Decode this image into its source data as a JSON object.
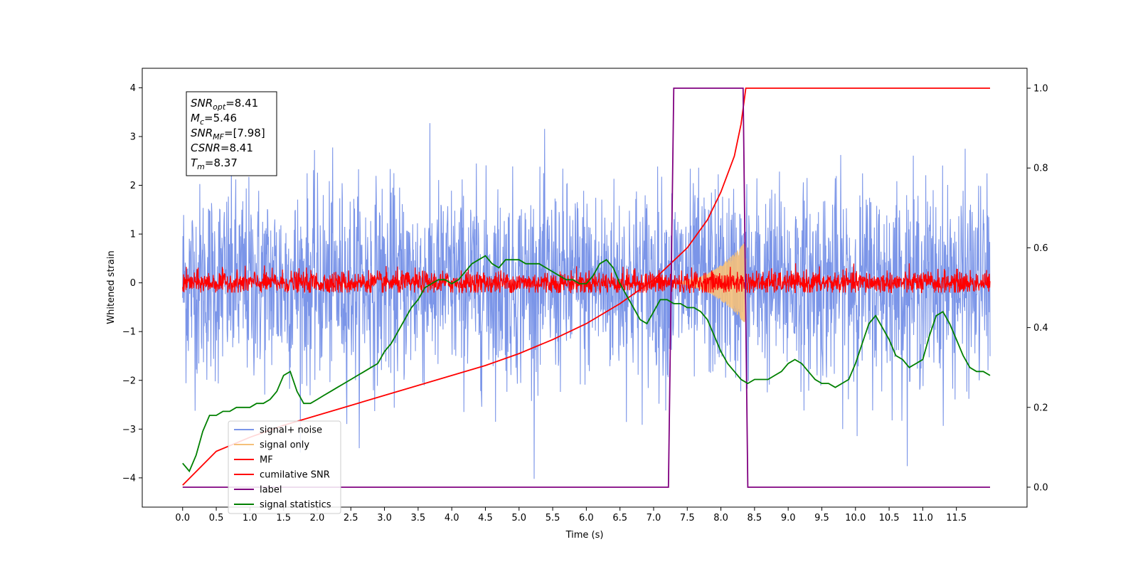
{
  "chart_data": {
    "type": "line",
    "xlabel": "Time (s)",
    "ylabel_left": "Whitened strain",
    "ylabel_right": "",
    "xlim": [
      -0.6,
      12.55
    ],
    "ylim_left": [
      -4.6,
      4.4
    ],
    "ylim_right": [
      -0.05,
      1.05
    ],
    "x_ticks": [
      "0.0",
      "0.5",
      "1.0",
      "1.5",
      "2.0",
      "2.5",
      "3.0",
      "3.5",
      "4.0",
      "4.5",
      "5.0",
      "5.5",
      "6.0",
      "6.5",
      "7.0",
      "7.5",
      "8.0",
      "8.5",
      "9.0",
      "9.5",
      "10.0",
      "10.5",
      "11.0",
      "11.5"
    ],
    "y_ticks_left": [
      "4",
      "3",
      "2",
      "1",
      "0",
      "−1",
      "−2",
      "−3",
      "−4"
    ],
    "y_ticks_right": [
      "1.0",
      "0.8",
      "0.6",
      "0.4",
      "0.2",
      "0.0"
    ],
    "grid": false,
    "legend_position": "lower-left",
    "info_box": [
      {
        "var": "SNR",
        "sub": "opt",
        "value": "=8.41"
      },
      {
        "var": "M",
        "sub": "c",
        "value": "=5.46"
      },
      {
        "var": "SNR",
        "sub": "MF",
        "value": "=[7.98]"
      },
      {
        "var": "CSNR",
        "sub": "",
        "value": "=8.41"
      },
      {
        "var": "T",
        "sub": "m",
        "value": "=8.37"
      }
    ],
    "series": [
      {
        "name": "signal+ noise",
        "color": "#7b95e8",
        "axis": "left",
        "description_kind": "noise",
        "amplitude_std": 1.0,
        "x_range": [
          0.0,
          12.0
        ]
      },
      {
        "name": "signal only",
        "color": "#f5c07a",
        "axis": "left",
        "chirp_start": 7.2,
        "chirp_end": 8.37,
        "peak_amplitude": 0.85
      },
      {
        "name": "MF",
        "color": "#ff0000",
        "axis": "left",
        "amplitude_std": 0.12,
        "x_range": [
          0.0,
          12.0
        ]
      },
      {
        "name": "cumilative SNR",
        "color": "#ff0000",
        "axis": "right",
        "x": [
          0.0,
          0.5,
          1.0,
          1.5,
          2.0,
          2.5,
          3.0,
          3.5,
          4.0,
          4.5,
          5.0,
          5.5,
          6.0,
          6.5,
          7.0,
          7.5,
          7.8,
          8.0,
          8.2,
          8.3,
          8.37,
          8.5,
          9.0,
          10.0,
          11.0,
          12.0
        ],
        "y": [
          0.005,
          0.09,
          0.125,
          0.155,
          0.18,
          0.205,
          0.23,
          0.255,
          0.28,
          0.305,
          0.335,
          0.37,
          0.41,
          0.46,
          0.52,
          0.6,
          0.67,
          0.74,
          0.83,
          0.91,
          1.0,
          1.0,
          1.0,
          1.0,
          1.0,
          1.0
        ]
      },
      {
        "name": "label",
        "color": "#800080",
        "axis": "right",
        "x": [
          0.0,
          7.22,
          7.3,
          8.33,
          8.4,
          12.0
        ],
        "y": [
          0.0,
          0.0,
          1.0,
          1.0,
          0.0,
          0.0
        ]
      },
      {
        "name": "signal statistics",
        "color": "#008000",
        "axis": "right",
        "x": [
          0.0,
          0.1,
          0.2,
          0.3,
          0.4,
          0.5,
          0.6,
          0.7,
          0.8,
          0.9,
          1.0,
          1.1,
          1.2,
          1.3,
          1.4,
          1.5,
          1.6,
          1.7,
          1.8,
          1.9,
          2.0,
          2.1,
          2.2,
          2.3,
          2.4,
          2.5,
          2.6,
          2.7,
          2.8,
          2.9,
          3.0,
          3.1,
          3.2,
          3.3,
          3.4,
          3.5,
          3.6,
          3.7,
          3.8,
          3.9,
          4.0,
          4.1,
          4.2,
          4.3,
          4.4,
          4.5,
          4.6,
          4.7,
          4.8,
          4.9,
          5.0,
          5.1,
          5.2,
          5.3,
          5.4,
          5.5,
          5.6,
          5.7,
          5.8,
          5.9,
          6.0,
          6.1,
          6.2,
          6.3,
          6.4,
          6.5,
          6.6,
          6.7,
          6.8,
          6.9,
          7.0,
          7.1,
          7.2,
          7.3,
          7.4,
          7.5,
          7.6,
          7.7,
          7.8,
          7.9,
          8.0,
          8.1,
          8.2,
          8.3,
          8.4,
          8.5,
          8.6,
          8.7,
          8.8,
          8.9,
          9.0,
          9.1,
          9.2,
          9.3,
          9.4,
          9.5,
          9.6,
          9.7,
          9.8,
          9.9,
          10.0,
          10.1,
          10.2,
          10.3,
          10.4,
          10.5,
          10.6,
          10.7,
          10.8,
          10.9,
          11.0,
          11.1,
          11.2,
          11.3,
          11.4,
          11.5,
          11.6,
          11.7,
          11.8,
          11.9,
          12.0
        ],
        "y": [
          0.06,
          0.04,
          0.08,
          0.14,
          0.18,
          0.18,
          0.19,
          0.19,
          0.2,
          0.2,
          0.2,
          0.21,
          0.21,
          0.22,
          0.24,
          0.28,
          0.29,
          0.24,
          0.21,
          0.21,
          0.22,
          0.23,
          0.24,
          0.25,
          0.26,
          0.27,
          0.28,
          0.29,
          0.3,
          0.31,
          0.34,
          0.36,
          0.39,
          0.42,
          0.45,
          0.47,
          0.5,
          0.51,
          0.52,
          0.52,
          0.51,
          0.52,
          0.54,
          0.56,
          0.57,
          0.58,
          0.56,
          0.55,
          0.57,
          0.57,
          0.57,
          0.56,
          0.56,
          0.56,
          0.55,
          0.54,
          0.53,
          0.52,
          0.52,
          0.51,
          0.51,
          0.53,
          0.56,
          0.57,
          0.55,
          0.51,
          0.48,
          0.45,
          0.42,
          0.41,
          0.44,
          0.47,
          0.47,
          0.46,
          0.46,
          0.45,
          0.45,
          0.44,
          0.42,
          0.38,
          0.34,
          0.31,
          0.29,
          0.27,
          0.26,
          0.27,
          0.27,
          0.27,
          0.28,
          0.29,
          0.31,
          0.32,
          0.31,
          0.29,
          0.27,
          0.26,
          0.26,
          0.25,
          0.26,
          0.27,
          0.31,
          0.36,
          0.41,
          0.43,
          0.4,
          0.37,
          0.33,
          0.32,
          0.3,
          0.31,
          0.32,
          0.38,
          0.43,
          0.44,
          0.41,
          0.37,
          0.33,
          0.3,
          0.29,
          0.29,
          0.28
        ]
      }
    ]
  }
}
